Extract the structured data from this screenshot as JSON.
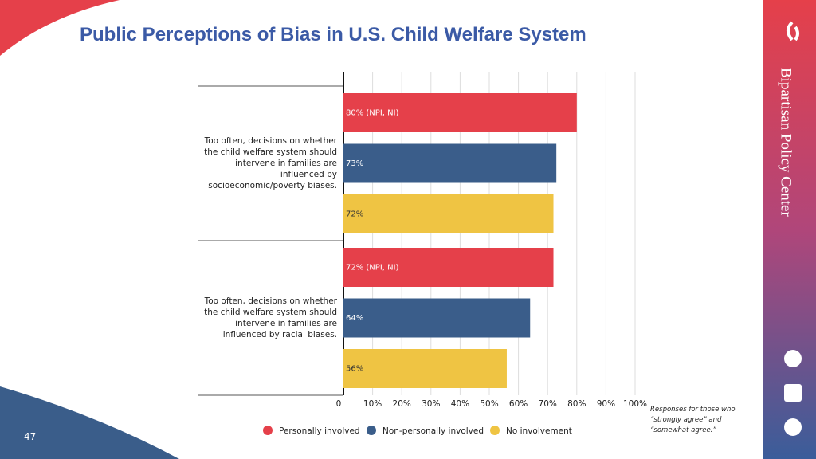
{
  "slide": {
    "brand": "Bipartisan Policy Center",
    "page_number": "47"
  },
  "chart_data": {
    "type": "bar",
    "orientation": "horizontal",
    "title": "Public Perceptions of Bias in U.S. Child Welfare System",
    "categories": [
      "Too often, decisions on whether the child welfare system should intervene in families are influenced by socioeconomic/poverty biases.",
      "Too often, decisions on whether the child welfare system should intervene in families are influenced by racial biases."
    ],
    "series": [
      {
        "name": "Personally involved",
        "color": "#e5404a",
        "values": [
          80,
          72
        ],
        "value_labels": [
          "80% (NPI, NI)",
          "72% (NPI, NI)"
        ]
      },
      {
        "name": "Non-personally involved",
        "color": "#3a5d8a",
        "values": [
          73,
          64
        ],
        "value_labels": [
          "73%",
          "64%"
        ]
      },
      {
        "name": "No involvement",
        "color": "#efc443",
        "values": [
          72,
          56
        ],
        "value_labels": [
          "72%",
          "56%"
        ]
      }
    ],
    "xlim": [
      0,
      100
    ],
    "xticks": [
      0,
      {
        "value": 10,
        "label": "10%"
      },
      {
        "value": 20,
        "label": "20%"
      },
      {
        "value": 30,
        "label": "30%"
      },
      {
        "value": 40,
        "label": "40%"
      },
      {
        "value": 50,
        "label": "50%"
      },
      {
        "value": 60,
        "label": "60%"
      },
      {
        "value": 70,
        "label": "70%"
      },
      {
        "value": 80,
        "label": "80%"
      },
      {
        "value": 90,
        "label": "90%"
      },
      {
        "value": 100,
        "label": "100%"
      }
    ],
    "grid": true,
    "legend": "bottom",
    "note": "Responses for those who “strongly agree” and “somewhat agree.”"
  }
}
